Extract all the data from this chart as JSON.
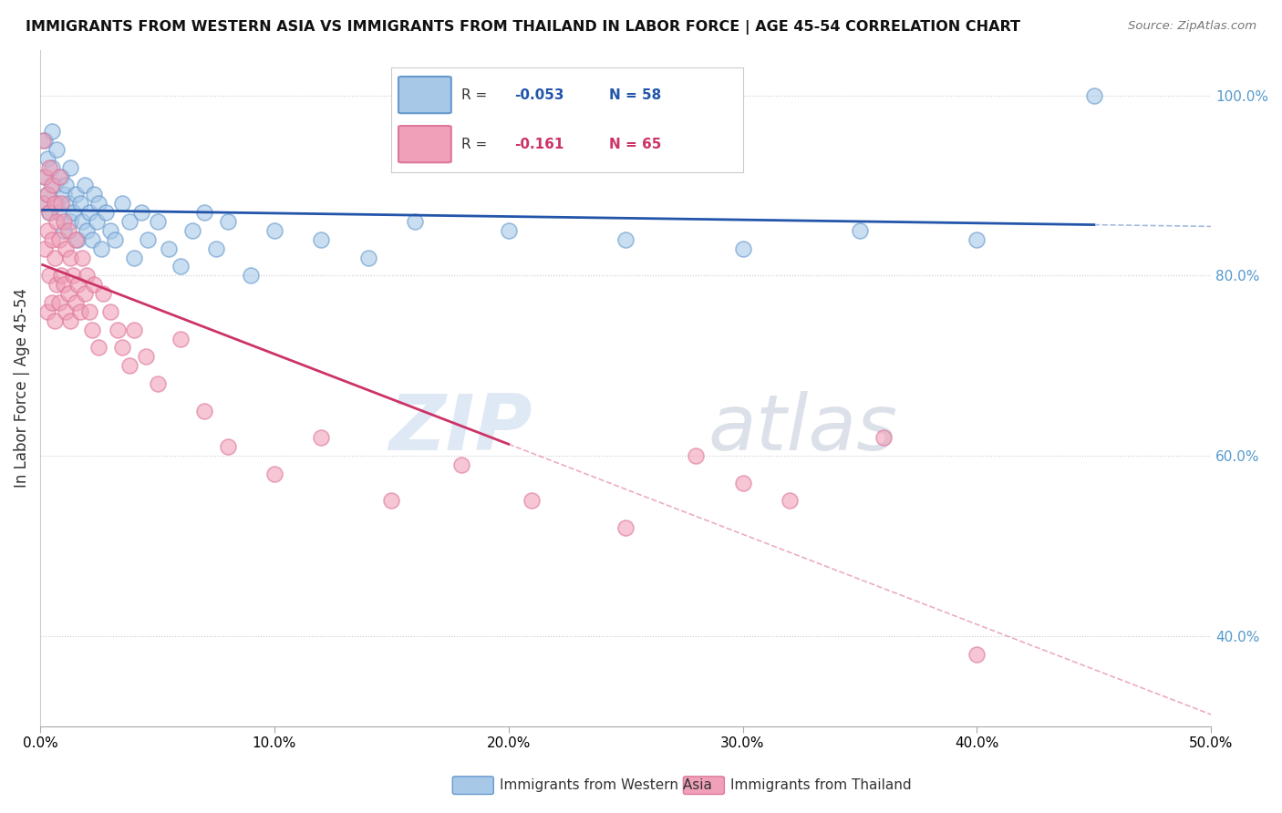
{
  "title": "IMMIGRANTS FROM WESTERN ASIA VS IMMIGRANTS FROM THAILAND IN LABOR FORCE | AGE 45-54 CORRELATION CHART",
  "source": "Source: ZipAtlas.com",
  "ylabel": "In Labor Force | Age 45-54",
  "xlim": [
    0.0,
    0.5
  ],
  "ylim": [
    0.3,
    1.05
  ],
  "xticks": [
    0.0,
    0.1,
    0.2,
    0.3,
    0.4,
    0.5
  ],
  "xtick_labels": [
    "0.0%",
    "10.0%",
    "20.0%",
    "30.0%",
    "40.0%",
    "50.0%"
  ],
  "yticks_right": [
    0.4,
    0.6,
    0.8,
    1.0
  ],
  "ytick_labels_right": [
    "40.0%",
    "60.0%",
    "80.0%",
    "100.0%"
  ],
  "legend_labels": [
    "Immigrants from Western Asia",
    "Immigrants from Thailand"
  ],
  "blue_color": "#a8c8e8",
  "blue_edge_color": "#6699cc",
  "pink_color": "#f0a0b8",
  "pink_edge_color": "#dd7799",
  "blue_R": -0.053,
  "blue_N": 58,
  "pink_R": -0.161,
  "pink_N": 65,
  "blue_line_color": "#2255aa",
  "pink_line_color": "#cc3366",
  "blue_scatter_x": [
    0.001,
    0.002,
    0.002,
    0.003,
    0.003,
    0.004,
    0.005,
    0.005,
    0.006,
    0.007,
    0.007,
    0.008,
    0.009,
    0.01,
    0.01,
    0.011,
    0.012,
    0.013,
    0.013,
    0.014,
    0.015,
    0.016,
    0.017,
    0.018,
    0.019,
    0.02,
    0.021,
    0.022,
    0.023,
    0.024,
    0.025,
    0.026,
    0.028,
    0.03,
    0.032,
    0.035,
    0.038,
    0.04,
    0.043,
    0.046,
    0.05,
    0.055,
    0.06,
    0.065,
    0.07,
    0.075,
    0.08,
    0.09,
    0.1,
    0.12,
    0.14,
    0.16,
    0.2,
    0.25,
    0.3,
    0.35,
    0.4,
    0.45
  ],
  "blue_scatter_y": [
    0.88,
    0.91,
    0.95,
    0.89,
    0.93,
    0.87,
    0.92,
    0.96,
    0.9,
    0.88,
    0.94,
    0.87,
    0.91,
    0.89,
    0.85,
    0.9,
    0.88,
    0.86,
    0.92,
    0.87,
    0.89,
    0.84,
    0.88,
    0.86,
    0.9,
    0.85,
    0.87,
    0.84,
    0.89,
    0.86,
    0.88,
    0.83,
    0.87,
    0.85,
    0.84,
    0.88,
    0.86,
    0.82,
    0.87,
    0.84,
    0.86,
    0.83,
    0.81,
    0.85,
    0.87,
    0.83,
    0.86,
    0.8,
    0.85,
    0.84,
    0.82,
    0.86,
    0.85,
    0.84,
    0.83,
    0.85,
    0.84,
    1.0
  ],
  "pink_scatter_x": [
    0.001,
    0.001,
    0.002,
    0.002,
    0.003,
    0.003,
    0.003,
    0.004,
    0.004,
    0.004,
    0.005,
    0.005,
    0.005,
    0.006,
    0.006,
    0.006,
    0.007,
    0.007,
    0.008,
    0.008,
    0.008,
    0.009,
    0.009,
    0.01,
    0.01,
    0.011,
    0.011,
    0.012,
    0.012,
    0.013,
    0.013,
    0.014,
    0.015,
    0.015,
    0.016,
    0.017,
    0.018,
    0.019,
    0.02,
    0.021,
    0.022,
    0.023,
    0.025,
    0.027,
    0.03,
    0.033,
    0.035,
    0.038,
    0.04,
    0.045,
    0.05,
    0.06,
    0.07,
    0.08,
    0.1,
    0.12,
    0.15,
    0.18,
    0.21,
    0.25,
    0.28,
    0.3,
    0.32,
    0.36,
    0.4
  ],
  "pink_scatter_y": [
    0.95,
    0.88,
    0.91,
    0.83,
    0.89,
    0.85,
    0.76,
    0.92,
    0.87,
    0.8,
    0.9,
    0.84,
    0.77,
    0.88,
    0.82,
    0.75,
    0.86,
    0.79,
    0.91,
    0.84,
    0.77,
    0.88,
    0.8,
    0.86,
    0.79,
    0.83,
    0.76,
    0.85,
    0.78,
    0.82,
    0.75,
    0.8,
    0.84,
    0.77,
    0.79,
    0.76,
    0.82,
    0.78,
    0.8,
    0.76,
    0.74,
    0.79,
    0.72,
    0.78,
    0.76,
    0.74,
    0.72,
    0.7,
    0.74,
    0.71,
    0.68,
    0.73,
    0.65,
    0.61,
    0.58,
    0.62,
    0.55,
    0.59,
    0.55,
    0.52,
    0.6,
    0.57,
    0.55,
    0.62,
    0.38
  ],
  "watermark_zip": "ZIP",
  "watermark_atlas": "atlas",
  "background_color": "#ffffff",
  "grid_color": "#cccccc"
}
